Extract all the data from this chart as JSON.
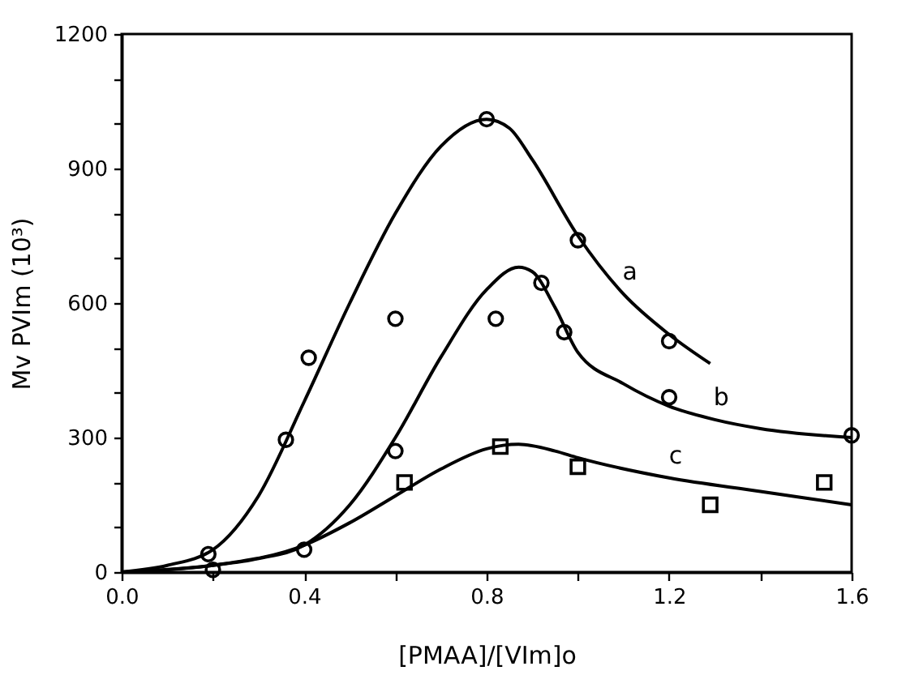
{
  "chart_data": {
    "type": "scatter",
    "xlabel": "[PMAA]/[VIm]o",
    "ylabel": "Mv PVIm (10³)",
    "xlim": [
      0,
      1.6
    ],
    "ylim": [
      0,
      1200
    ],
    "xticks": [
      {
        "value": 0,
        "label": "0.0"
      },
      {
        "value": 0.2,
        "label": null
      },
      0.4,
      {
        "value": 0.6,
        "label": null
      },
      0.8,
      {
        "value": 1.0,
        "label": null
      },
      1.2,
      {
        "value": 1.4,
        "label": null
      },
      1.6
    ],
    "yticks": [
      0,
      {
        "value": 100,
        "label": null
      },
      {
        "value": 200,
        "label": null
      },
      300,
      {
        "value": 400,
        "label": null
      },
      {
        "value": 500,
        "label": null
      },
      600,
      {
        "value": 700,
        "label": null
      },
      {
        "value": 800,
        "label": null
      },
      900,
      {
        "value": 1000,
        "label": null
      },
      {
        "value": 1100,
        "label": null
      },
      1200
    ],
    "grid": false,
    "series": [
      {
        "marker": "circle",
        "color": "#000000",
        "x": [
          0.19,
          0.36,
          0.41,
          0.6,
          0.8,
          1.0,
          1.2
        ],
        "values": [
          40,
          295,
          478,
          565,
          1010,
          740,
          515
        ]
      },
      {
        "marker": "circle",
        "color": "#000000",
        "x": [
          0.2,
          0.4,
          0.6,
          0.82,
          0.92,
          0.97,
          1.2,
          1.6
        ],
        "values": [
          5,
          50,
          270,
          565,
          645,
          535,
          390,
          305
        ]
      },
      {
        "marker": "square",
        "color": "#000000",
        "x": [
          0.62,
          0.83,
          1.0,
          1.29,
          1.54
        ],
        "values": [
          200,
          280,
          235,
          150,
          200
        ]
      },
      {
        "type": "line",
        "name": "a",
        "line_style": "solid",
        "color": "#000000",
        "x": [
          0,
          0.1,
          0.2,
          0.3,
          0.4,
          0.5,
          0.6,
          0.7,
          0.8,
          0.85,
          0.9,
          1.0,
          1.1,
          1.2,
          1.29
        ],
        "values": [
          0,
          15,
          50,
          170,
          380,
          600,
          800,
          950,
          1010,
          990,
          920,
          750,
          620,
          530,
          465
        ]
      },
      {
        "type": "line",
        "name": "b",
        "line_style": "solid",
        "color": "#000000",
        "x": [
          0,
          0.2,
          0.3,
          0.4,
          0.5,
          0.6,
          0.7,
          0.8,
          0.87,
          0.9,
          0.95,
          1.0,
          1.1,
          1.2,
          1.3,
          1.4,
          1.6
        ],
        "values": [
          0,
          15,
          30,
          60,
          150,
          300,
          480,
          630,
          680,
          670,
          590,
          490,
          420,
          370,
          340,
          320,
          300
        ]
      },
      {
        "type": "line",
        "name": "c",
        "line_style": "solid",
        "color": "#000000",
        "x": [
          0,
          0.2,
          0.4,
          0.5,
          0.6,
          0.7,
          0.8,
          0.87,
          0.95,
          1.0,
          1.2,
          1.4,
          1.6
        ],
        "values": [
          0,
          15,
          60,
          110,
          170,
          230,
          275,
          285,
          270,
          255,
          210,
          180,
          150
        ]
      }
    ]
  }
}
